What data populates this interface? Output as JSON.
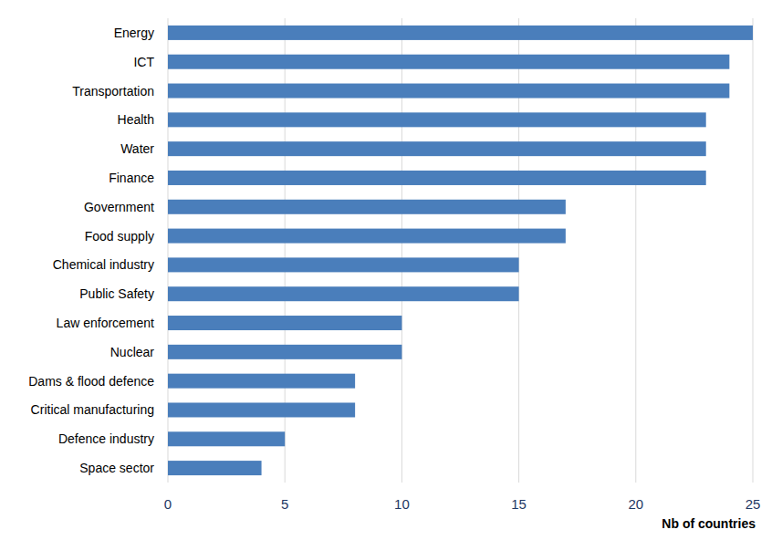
{
  "chart_data": {
    "type": "bar",
    "orientation": "horizontal",
    "categories": [
      "Energy",
      "ICT",
      "Transportation",
      "Health",
      "Water",
      "Finance",
      "Government",
      "Food supply",
      "Chemical industry",
      "Public Safety",
      "Law enforcement",
      "Nuclear",
      "Dams & flood defence",
      "Critical manufacturing",
      "Defence industry",
      "Space sector"
    ],
    "values": [
      25,
      24,
      24,
      23,
      23,
      23,
      17,
      17,
      15,
      15,
      10,
      10,
      8,
      8,
      5,
      4
    ],
    "color": "#4a7ebb",
    "xlabel": "Nb of countries",
    "xlim": [
      0,
      25
    ],
    "xticks": [
      0,
      5,
      10,
      15,
      20,
      25
    ],
    "grid": true
  }
}
